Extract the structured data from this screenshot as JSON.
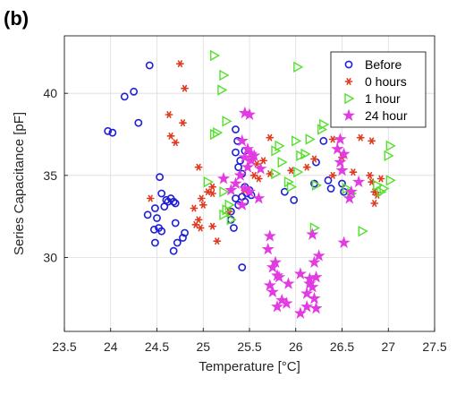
{
  "panel_label": "(b)",
  "chart_data": {
    "type": "scatter",
    "title": "",
    "xlabel": "Temperature [°C]",
    "ylabel": "Series Capacitance [pF]",
    "xlim": [
      23.5,
      27.5
    ],
    "ylim": [
      25.5,
      43.5
    ],
    "xticks": [
      23.5,
      24,
      24.5,
      25,
      25.5,
      26,
      26.5,
      27,
      27.5
    ],
    "yticks": [
      30,
      35,
      40
    ],
    "grid": true,
    "legend": "top-right",
    "series": [
      {
        "name": "Before",
        "marker": "circle",
        "color": "#1f1fd6",
        "points": [
          [
            24.42,
            41.7
          ],
          [
            24.15,
            39.8
          ],
          [
            24.25,
            40.1
          ],
          [
            23.97,
            37.7
          ],
          [
            24.02,
            37.6
          ],
          [
            24.3,
            38.2
          ],
          [
            24.53,
            34.9
          ],
          [
            24.55,
            33.9
          ],
          [
            24.6,
            33.5
          ],
          [
            24.65,
            33.6
          ],
          [
            24.68,
            33.4
          ],
          [
            24.62,
            33.4
          ],
          [
            24.58,
            33.1
          ],
          [
            24.7,
            33.3
          ],
          [
            24.48,
            33.0
          ],
          [
            24.4,
            32.6
          ],
          [
            24.5,
            32.4
          ],
          [
            24.7,
            32.1
          ],
          [
            24.52,
            31.8
          ],
          [
            24.47,
            31.7
          ],
          [
            24.55,
            31.6
          ],
          [
            24.78,
            31.2
          ],
          [
            24.72,
            30.9
          ],
          [
            24.48,
            30.9
          ],
          [
            24.68,
            30.4
          ],
          [
            24.8,
            31.5
          ],
          [
            25.35,
            37.8
          ],
          [
            25.37,
            37.1
          ],
          [
            25.35,
            36.4
          ],
          [
            25.4,
            35.9
          ],
          [
            25.45,
            36.5
          ],
          [
            25.38,
            35.5
          ],
          [
            25.42,
            35.1
          ],
          [
            25.45,
            34.3
          ],
          [
            25.5,
            34.1
          ],
          [
            25.52,
            33.8
          ],
          [
            25.42,
            33.7
          ],
          [
            25.35,
            33.6
          ],
          [
            25.45,
            33.4
          ],
          [
            25.38,
            33.2
          ],
          [
            25.3,
            32.3
          ],
          [
            25.33,
            31.8
          ],
          [
            25.3,
            32.8
          ],
          [
            25.47,
            33.9
          ],
          [
            25.42,
            29.4
          ],
          [
            25.88,
            34.0
          ],
          [
            25.98,
            33.5
          ],
          [
            26.22,
            35.8
          ],
          [
            26.3,
            37.1
          ],
          [
            26.35,
            34.7
          ],
          [
            26.38,
            34.2
          ],
          [
            26.2,
            34.5
          ],
          [
            26.5,
            34.5
          ],
          [
            26.52,
            34.0
          ]
        ]
      },
      {
        "name": "0 hours",
        "marker": "asterisk",
        "color": "#e03a1e",
        "points": [
          [
            24.75,
            41.8
          ],
          [
            24.8,
            40.3
          ],
          [
            24.63,
            38.7
          ],
          [
            24.78,
            38.2
          ],
          [
            24.65,
            37.4
          ],
          [
            24.7,
            37.0
          ],
          [
            24.95,
            35.5
          ],
          [
            25.1,
            34.3
          ],
          [
            25.05,
            34.0
          ],
          [
            24.98,
            33.6
          ],
          [
            25.1,
            33.9
          ],
          [
            25.0,
            33.2
          ],
          [
            24.9,
            33.0
          ],
          [
            24.95,
            32.3
          ],
          [
            24.92,
            32.0
          ],
          [
            24.97,
            31.8
          ],
          [
            25.1,
            31.9
          ],
          [
            25.15,
            31.0
          ],
          [
            24.43,
            33.6
          ],
          [
            25.28,
            32.8
          ],
          [
            25.58,
            35.7
          ],
          [
            25.72,
            37.3
          ],
          [
            25.65,
            35.9
          ],
          [
            25.72,
            35.1
          ],
          [
            25.55,
            35.0
          ],
          [
            25.45,
            34.1
          ],
          [
            25.6,
            34.8
          ],
          [
            25.95,
            35.3
          ],
          [
            26.12,
            35.5
          ],
          [
            26.2,
            36.0
          ],
          [
            26.4,
            37.2
          ],
          [
            26.5,
            36.1
          ],
          [
            26.62,
            35.2
          ],
          [
            26.7,
            37.3
          ],
          [
            26.82,
            37.1
          ],
          [
            26.8,
            35.0
          ],
          [
            26.82,
            34.6
          ],
          [
            26.85,
            34.0
          ],
          [
            26.88,
            33.8
          ],
          [
            26.92,
            34.8
          ],
          [
            26.85,
            33.3
          ],
          [
            26.4,
            35.0
          ]
        ]
      },
      {
        "name": "1 hour",
        "marker": "triangle-right",
        "color": "#55e02e",
        "points": [
          [
            25.12,
            42.3
          ],
          [
            25.22,
            41.1
          ],
          [
            25.2,
            40.2
          ],
          [
            25.25,
            38.3
          ],
          [
            25.15,
            37.6
          ],
          [
            25.12,
            37.5
          ],
          [
            25.05,
            34.6
          ],
          [
            25.22,
            34.0
          ],
          [
            25.28,
            33.2
          ],
          [
            25.25,
            32.9
          ],
          [
            25.3,
            32.3
          ],
          [
            25.22,
            32.6
          ],
          [
            25.78,
            36.5
          ],
          [
            25.82,
            36.8
          ],
          [
            25.85,
            35.8
          ],
          [
            25.78,
            35.1
          ],
          [
            25.92,
            34.6
          ],
          [
            25.95,
            34.3
          ],
          [
            26.02,
            35.2
          ],
          [
            26.05,
            36.2
          ],
          [
            26.1,
            36.3
          ],
          [
            26.0,
            37.1
          ],
          [
            26.15,
            37.2
          ],
          [
            26.28,
            37.8
          ],
          [
            26.3,
            38.1
          ],
          [
            26.02,
            41.6
          ],
          [
            26.22,
            34.4
          ],
          [
            26.2,
            31.8
          ],
          [
            26.55,
            34.2
          ],
          [
            26.6,
            33.9
          ],
          [
            26.72,
            31.6
          ],
          [
            26.88,
            34.4
          ],
          [
            26.95,
            34.2
          ],
          [
            27.02,
            34.7
          ],
          [
            27.0,
            36.2
          ],
          [
            27.02,
            36.8
          ],
          [
            26.92,
            34.0
          ]
        ]
      },
      {
        "name": "24 hour",
        "marker": "pentagram",
        "color": "#e23be2",
        "points": [
          [
            25.45,
            38.8
          ],
          [
            25.5,
            38.7
          ],
          [
            25.42,
            37.1
          ],
          [
            25.48,
            36.6
          ],
          [
            25.52,
            36.3
          ],
          [
            25.45,
            36.1
          ],
          [
            25.55,
            36.2
          ],
          [
            25.52,
            35.9
          ],
          [
            25.48,
            35.5
          ],
          [
            25.62,
            35.4
          ],
          [
            25.4,
            35.0
          ],
          [
            25.35,
            34.5
          ],
          [
            25.45,
            34.2
          ],
          [
            25.22,
            34.8
          ],
          [
            25.3,
            34.1
          ],
          [
            25.5,
            34.0
          ],
          [
            25.6,
            33.6
          ],
          [
            25.42,
            33.2
          ],
          [
            25.72,
            31.3
          ],
          [
            25.7,
            30.5
          ],
          [
            25.78,
            29.7
          ],
          [
            25.75,
            29.4
          ],
          [
            25.8,
            28.9
          ],
          [
            25.72,
            28.3
          ],
          [
            25.75,
            27.9
          ],
          [
            25.85,
            27.4
          ],
          [
            25.8,
            27.0
          ],
          [
            25.9,
            27.2
          ],
          [
            25.82,
            28.8
          ],
          [
            25.92,
            28.4
          ],
          [
            26.05,
            29.0
          ],
          [
            26.15,
            28.7
          ],
          [
            26.18,
            28.2
          ],
          [
            26.12,
            27.8
          ],
          [
            26.2,
            27.5
          ],
          [
            26.12,
            27.0
          ],
          [
            26.05,
            26.6
          ],
          [
            26.22,
            26.9
          ],
          [
            26.15,
            28.4
          ],
          [
            26.22,
            28.8
          ],
          [
            26.25,
            30.1
          ],
          [
            26.18,
            31.4
          ],
          [
            26.2,
            29.7
          ],
          [
            26.45,
            36.6
          ],
          [
            26.52,
            36.3
          ],
          [
            26.48,
            35.8
          ],
          [
            26.5,
            35.3
          ],
          [
            26.6,
            34.0
          ],
          [
            26.68,
            34.6
          ],
          [
            26.52,
            30.9
          ],
          [
            26.58,
            33.6
          ],
          [
            26.48,
            37.2
          ]
        ]
      }
    ]
  }
}
